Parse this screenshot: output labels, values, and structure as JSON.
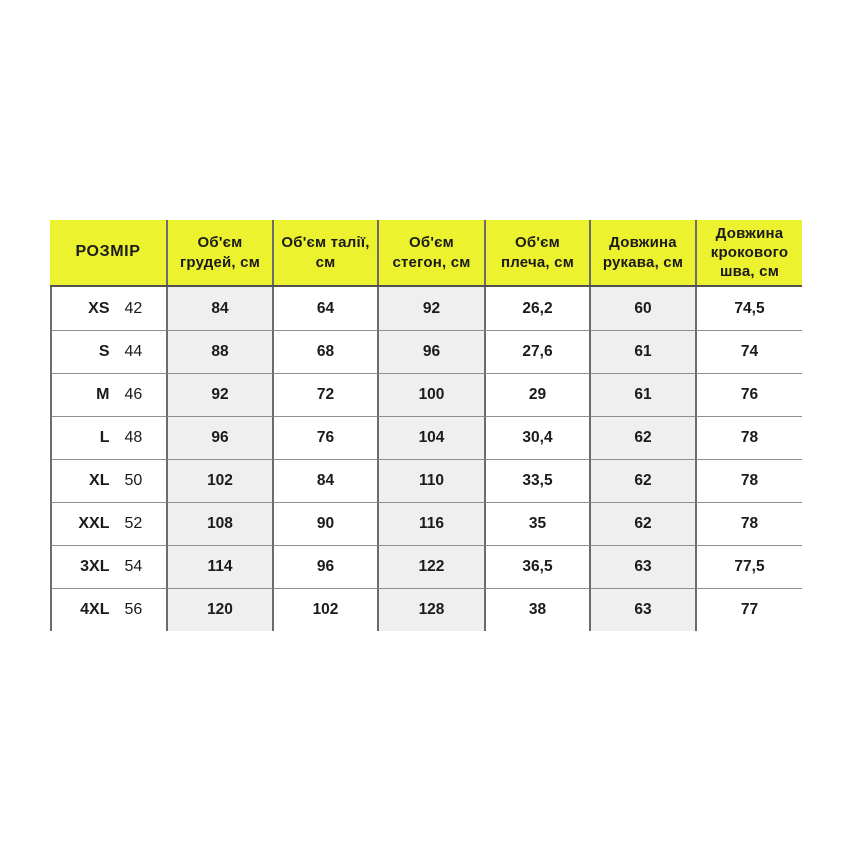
{
  "chart_data": {
    "type": "table",
    "title": "",
    "columns": [
      "РОЗМІР",
      "Об'єм грудей, см",
      "Об'єм талії, см",
      "Об'єм стегон, см",
      "Об'єм плеча, см",
      "Довжина рукава, см",
      "Довжина крокового шва, см"
    ],
    "rows": [
      [
        "XS",
        "42",
        "84",
        "64",
        "92",
        "26,2",
        "60",
        "74,5"
      ],
      [
        "S",
        "44",
        "88",
        "68",
        "96",
        "27,6",
        "61",
        "74"
      ],
      [
        "M",
        "46",
        "92",
        "72",
        "100",
        "29",
        "61",
        "76"
      ],
      [
        "L",
        "48",
        "96",
        "76",
        "104",
        "30,4",
        "62",
        "78"
      ],
      [
        "XL",
        "50",
        "102",
        "84",
        "110",
        "33,5",
        "62",
        "78"
      ],
      [
        "XXL",
        "52",
        "108",
        "90",
        "116",
        "35",
        "62",
        "78"
      ],
      [
        "3XL",
        "54",
        "114",
        "96",
        "122",
        "36,5",
        "63",
        "77,5"
      ],
      [
        "4XL",
        "56",
        "120",
        "102",
        "128",
        "38",
        "63",
        "77"
      ]
    ],
    "layout": {
      "header_fill": "#edf22e",
      "striped_columns": [
        "Об'єм грудей, см",
        "Об'єм стегон, см",
        "Довжина рукава, см"
      ]
    }
  },
  "table": {
    "header": {
      "size_label": "РОЗМІР",
      "cols": [
        "Об'єм грудей, см",
        "Об'єм талії, см",
        "Об'єм стегон, см",
        "Об'єм плеча, см",
        "Довжина рукава, см",
        "Довжина крокового шва, см"
      ]
    },
    "rows": [
      {
        "size": "XS",
        "size_num": "42",
        "v": [
          "84",
          "64",
          "92",
          "26,2",
          "60",
          "74,5"
        ]
      },
      {
        "size": "S",
        "size_num": "44",
        "v": [
          "88",
          "68",
          "96",
          "27,6",
          "61",
          "74"
        ]
      },
      {
        "size": "M",
        "size_num": "46",
        "v": [
          "92",
          "72",
          "100",
          "29",
          "61",
          "76"
        ]
      },
      {
        "size": "L",
        "size_num": "48",
        "v": [
          "96",
          "76",
          "104",
          "30,4",
          "62",
          "78"
        ]
      },
      {
        "size": "XL",
        "size_num": "50",
        "v": [
          "102",
          "84",
          "110",
          "33,5",
          "62",
          "78"
        ]
      },
      {
        "size": "XXL",
        "size_num": "52",
        "v": [
          "108",
          "90",
          "116",
          "35",
          "62",
          "78"
        ]
      },
      {
        "size": "3XL",
        "size_num": "54",
        "v": [
          "114",
          "96",
          "122",
          "36,5",
          "63",
          "77,5"
        ]
      },
      {
        "size": "4XL",
        "size_num": "56",
        "v": [
          "120",
          "102",
          "128",
          "38",
          "63",
          "77"
        ]
      }
    ],
    "colors": {
      "header_bg": "#edf22e",
      "stripe_bg": "#efefef",
      "text": "#1b1b1b",
      "column_line": "#6b6b6b",
      "row_line": "#8d8d8d",
      "header_underline": "#515151"
    }
  }
}
